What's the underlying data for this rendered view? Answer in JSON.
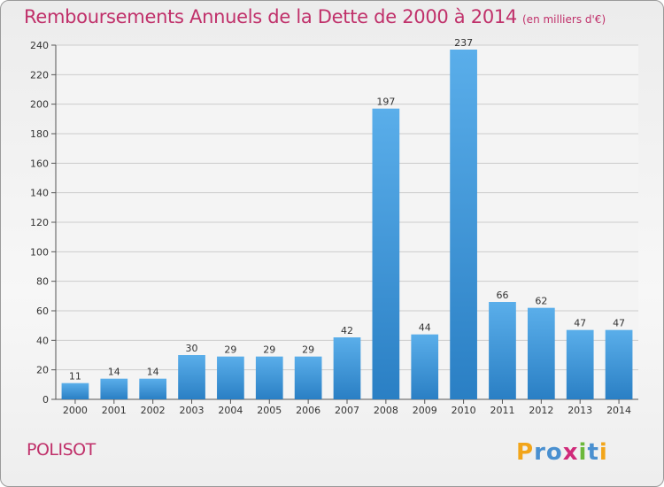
{
  "title": "Remboursements Annuels de la Dette de 2000 à 2014",
  "unit_note": "(en milliers d'€)",
  "commune": "POLISOT",
  "brand": "Proxiti",
  "colors": {
    "title": "#c0306a",
    "bar_light": "#5aaeea",
    "bar_dark": "#2a7fc4",
    "grid": "#cccccc",
    "axis": "#555555"
  },
  "chart_data": {
    "type": "bar",
    "title": "Remboursements Annuels de la Dette de 2000 à 2014",
    "subtitle": "(en milliers d'€)",
    "categories": [
      "2000",
      "2001",
      "2002",
      "2003",
      "2004",
      "2005",
      "2006",
      "2007",
      "2008",
      "2009",
      "2010",
      "2011",
      "2012",
      "2013",
      "2014"
    ],
    "values": [
      11,
      14,
      14,
      30,
      29,
      29,
      29,
      42,
      197,
      44,
      237,
      66,
      62,
      47,
      47
    ],
    "ylim": [
      0,
      240
    ],
    "yticks": [
      0,
      20,
      40,
      60,
      80,
      100,
      120,
      140,
      160,
      180,
      200,
      220,
      240
    ],
    "grid": true,
    "data_labels": true
  }
}
